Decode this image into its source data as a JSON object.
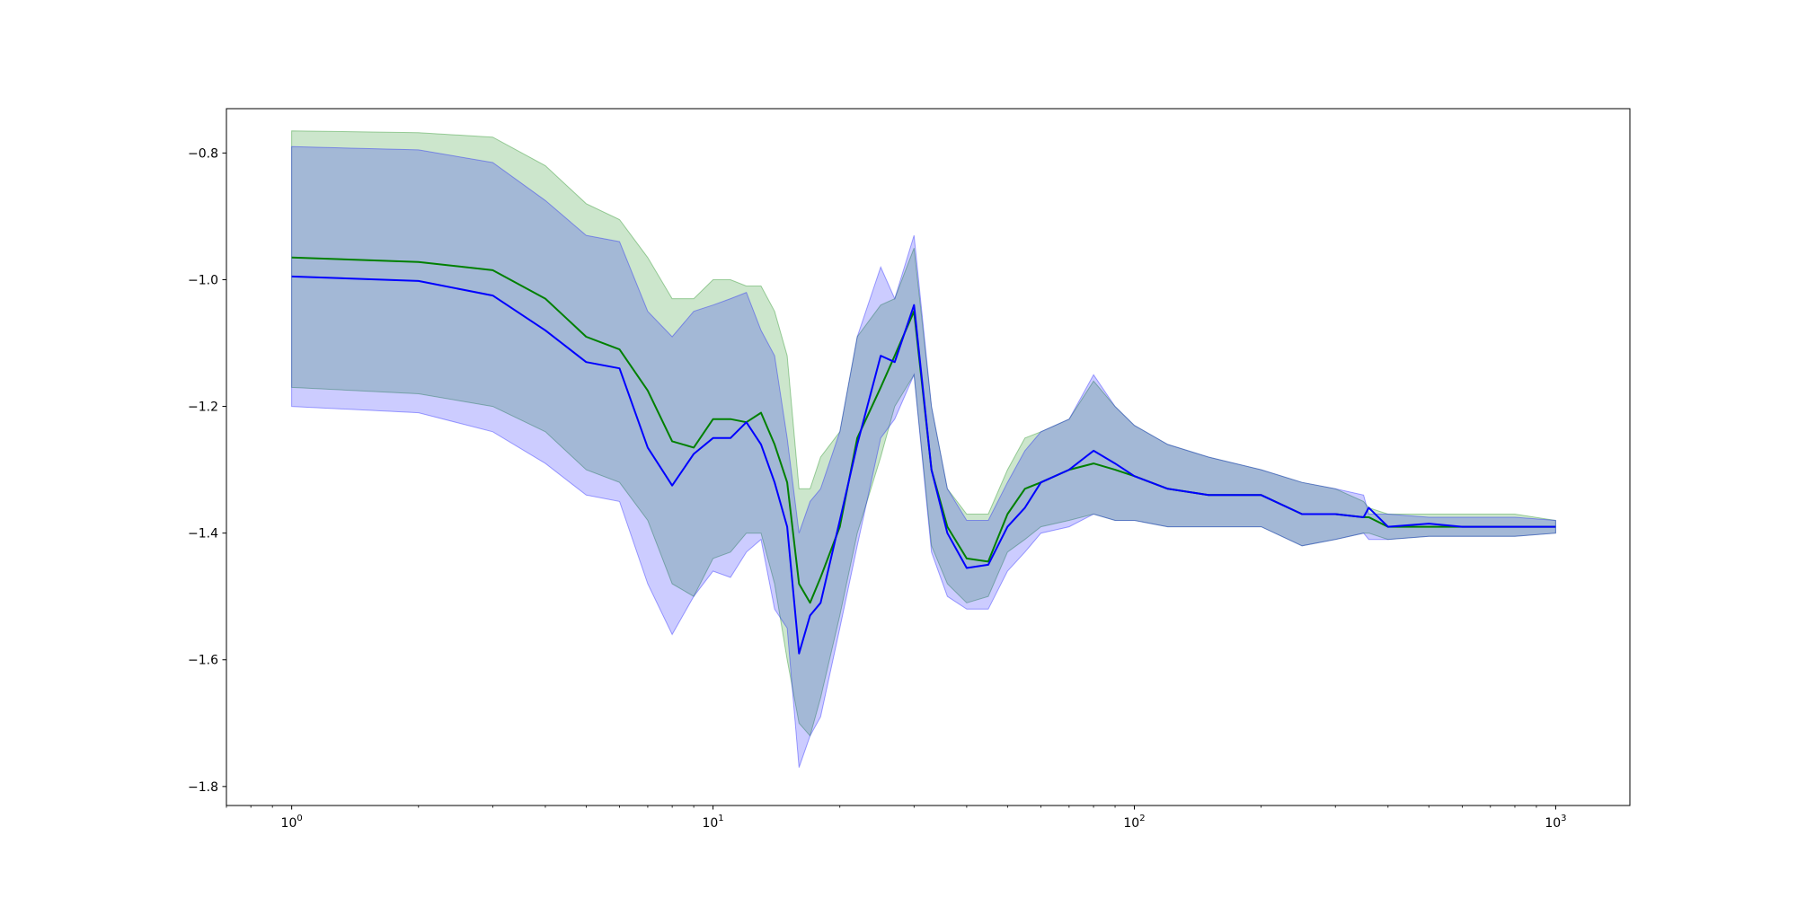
{
  "chart_data": {
    "type": "line",
    "title": "",
    "xlabel": "",
    "ylabel": "",
    "x_scale": "log",
    "xlim": [
      0.7,
      1500
    ],
    "ylim": [
      -1.83,
      -0.73
    ],
    "grid": false,
    "legend": "none",
    "x_ticks": [
      {
        "value": 1,
        "base": "10",
        "exp": "0"
      },
      {
        "value": 10,
        "base": "10",
        "exp": "1"
      },
      {
        "value": 100,
        "base": "10",
        "exp": "2"
      },
      {
        "value": 1000,
        "base": "10",
        "exp": "3"
      }
    ],
    "y_ticks": [
      {
        "value": -0.8,
        "label": "−0.8"
      },
      {
        "value": -1.0,
        "label": "−1.0"
      },
      {
        "value": -1.2,
        "label": "−1.2"
      },
      {
        "value": -1.4,
        "label": "−1.4"
      },
      {
        "value": -1.6,
        "label": "−1.6"
      },
      {
        "value": -1.8,
        "label": "−1.8"
      }
    ],
    "series": [
      {
        "color": "#008000",
        "band_color": "#008000",
        "band_opacity": 0.2,
        "x": [
          1,
          2,
          3,
          4,
          5,
          6,
          7,
          8,
          9,
          10,
          11,
          12,
          13,
          14,
          15,
          16,
          17,
          18,
          20,
          22,
          25,
          27,
          30,
          33,
          36,
          40,
          45,
          50,
          55,
          60,
          70,
          80,
          90,
          100,
          120,
          150,
          200,
          250,
          300,
          350,
          360,
          400,
          500,
          600,
          800,
          1000
        ],
        "y": [
          -0.965,
          -0.972,
          -0.985,
          -1.03,
          -1.09,
          -1.11,
          -1.175,
          -1.255,
          -1.265,
          -1.22,
          -1.22,
          -1.225,
          -1.21,
          -1.26,
          -1.32,
          -1.48,
          -1.51,
          -1.47,
          -1.39,
          -1.25,
          -1.17,
          -1.12,
          -1.05,
          -1.3,
          -1.39,
          -1.44,
          -1.445,
          -1.37,
          -1.33,
          -1.32,
          -1.3,
          -1.29,
          -1.3,
          -1.31,
          -1.33,
          -1.34,
          -1.34,
          -1.37,
          -1.37,
          -1.375,
          -1.375,
          -1.39,
          -1.39,
          -1.39,
          -1.39,
          -1.39
        ],
        "lower": [
          -1.17,
          -1.18,
          -1.2,
          -1.24,
          -1.3,
          -1.32,
          -1.38,
          -1.48,
          -1.5,
          -1.44,
          -1.43,
          -1.4,
          -1.4,
          -1.48,
          -1.6,
          -1.7,
          -1.72,
          -1.66,
          -1.53,
          -1.4,
          -1.28,
          -1.2,
          -1.15,
          -1.42,
          -1.48,
          -1.51,
          -1.5,
          -1.43,
          -1.41,
          -1.39,
          -1.38,
          -1.37,
          -1.38,
          -1.38,
          -1.39,
          -1.39,
          -1.39,
          -1.42,
          -1.41,
          -1.4,
          -1.4,
          -1.41,
          -1.405,
          -1.405,
          -1.405,
          -1.4
        ],
        "upper": [
          -0.765,
          -0.768,
          -0.775,
          -0.82,
          -0.88,
          -0.905,
          -0.965,
          -1.03,
          -1.03,
          -1.0,
          -1.0,
          -1.01,
          -1.01,
          -1.05,
          -1.12,
          -1.33,
          -1.33,
          -1.28,
          -1.24,
          -1.09,
          -1.04,
          -1.03,
          -0.95,
          -1.2,
          -1.33,
          -1.37,
          -1.37,
          -1.3,
          -1.25,
          -1.24,
          -1.22,
          -1.16,
          -1.2,
          -1.23,
          -1.26,
          -1.28,
          -1.3,
          -1.32,
          -1.33,
          -1.35,
          -1.36,
          -1.37,
          -1.37,
          -1.37,
          -1.37,
          -1.38
        ]
      },
      {
        "color": "#0000ff",
        "band_color": "#0000ff",
        "band_opacity": 0.2,
        "x": [
          1,
          2,
          3,
          4,
          5,
          6,
          7,
          8,
          9,
          10,
          11,
          12,
          13,
          14,
          15,
          16,
          17,
          18,
          20,
          22,
          25,
          27,
          30,
          33,
          36,
          40,
          45,
          50,
          55,
          60,
          70,
          80,
          90,
          100,
          120,
          150,
          200,
          250,
          300,
          350,
          360,
          400,
          500,
          600,
          800,
          1000
        ],
        "y": [
          -0.995,
          -1.002,
          -1.025,
          -1.08,
          -1.13,
          -1.14,
          -1.265,
          -1.325,
          -1.275,
          -1.25,
          -1.25,
          -1.225,
          -1.26,
          -1.32,
          -1.39,
          -1.59,
          -1.53,
          -1.51,
          -1.38,
          -1.26,
          -1.12,
          -1.13,
          -1.04,
          -1.3,
          -1.4,
          -1.455,
          -1.45,
          -1.39,
          -1.36,
          -1.32,
          -1.3,
          -1.27,
          -1.29,
          -1.31,
          -1.33,
          -1.34,
          -1.34,
          -1.37,
          -1.37,
          -1.375,
          -1.36,
          -1.39,
          -1.385,
          -1.39,
          -1.39,
          -1.39
        ],
        "lower": [
          -1.2,
          -1.21,
          -1.24,
          -1.29,
          -1.34,
          -1.35,
          -1.48,
          -1.56,
          -1.5,
          -1.46,
          -1.47,
          -1.43,
          -1.41,
          -1.52,
          -1.55,
          -1.77,
          -1.72,
          -1.69,
          -1.55,
          -1.42,
          -1.25,
          -1.22,
          -1.15,
          -1.43,
          -1.5,
          -1.52,
          -1.52,
          -1.46,
          -1.43,
          -1.4,
          -1.39,
          -1.37,
          -1.38,
          -1.38,
          -1.39,
          -1.39,
          -1.39,
          -1.42,
          -1.41,
          -1.4,
          -1.41,
          -1.41,
          -1.405,
          -1.405,
          -1.405,
          -1.4
        ],
        "upper": [
          -0.79,
          -0.795,
          -0.815,
          -0.875,
          -0.93,
          -0.94,
          -1.05,
          -1.09,
          -1.05,
          -1.04,
          -1.03,
          -1.02,
          -1.08,
          -1.12,
          -1.25,
          -1.4,
          -1.35,
          -1.33,
          -1.24,
          -1.09,
          -0.98,
          -1.03,
          -0.93,
          -1.2,
          -1.33,
          -1.38,
          -1.38,
          -1.32,
          -1.27,
          -1.24,
          -1.22,
          -1.15,
          -1.2,
          -1.23,
          -1.26,
          -1.28,
          -1.3,
          -1.32,
          -1.33,
          -1.34,
          -1.37,
          -1.37,
          -1.375,
          -1.375,
          -1.375,
          -1.38
        ]
      }
    ]
  }
}
